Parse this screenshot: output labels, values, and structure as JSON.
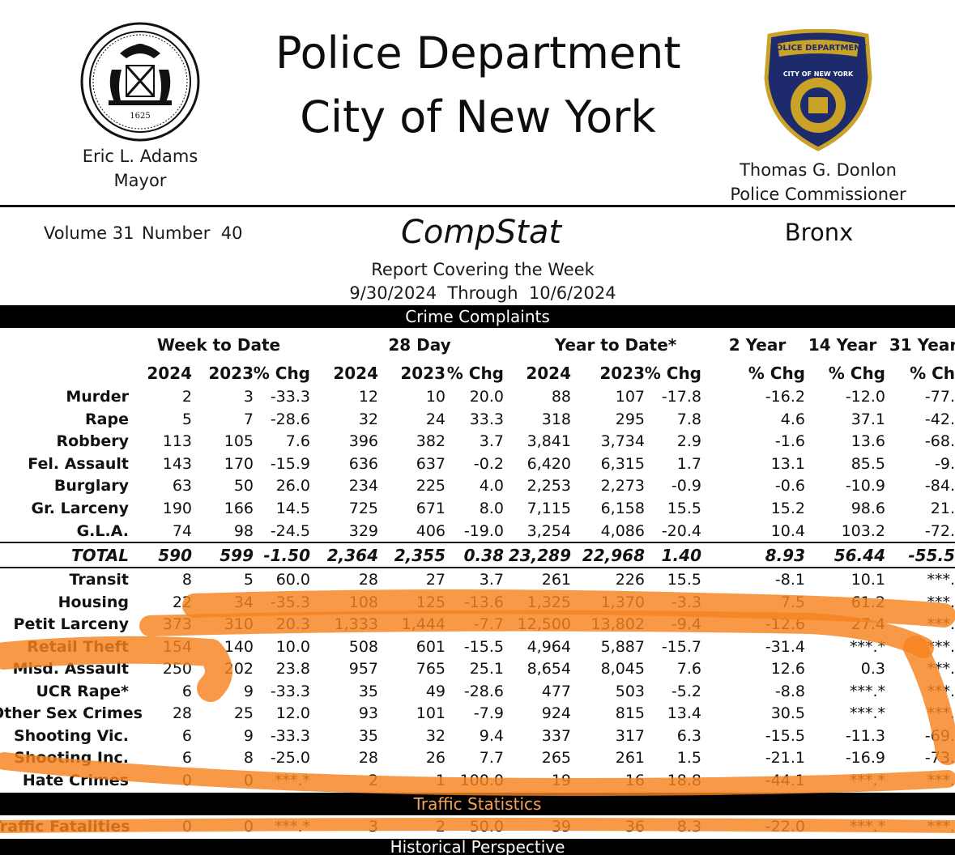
{
  "header": {
    "title_line1": "Police Department",
    "title_line2": "City of New York",
    "mayor_name": "Eric L. Adams",
    "mayor_title": "Mayor",
    "commissioner_name": "Thomas G. Donlon",
    "commissioner_title": "Police Commissioner",
    "seal_year": "1625",
    "badge_text": "POLICE DEPARTMENT",
    "badge_ring": "CITY OF NEW YORK"
  },
  "report": {
    "volume": "Volume 31",
    "number": "Number  40",
    "name": "CompStat",
    "borough": "Bronx",
    "covering": "Report Covering the Week",
    "dates": "9/30/2024  Through  10/6/2024"
  },
  "sections": {
    "crime": "Crime Complaints",
    "traffic": "Traffic Statistics",
    "next": "Historical Perspective"
  },
  "table": {
    "groups": [
      "Week to Date",
      "28 Day",
      "Year to Date*",
      "2 Year",
      "14 Year",
      "31 Year"
    ],
    "columns": [
      "2024",
      "2023",
      "% Chg",
      "2024",
      "2023",
      "% Chg",
      "2024",
      "2023",
      "% Chg",
      "% Chg",
      "% Chg",
      "% Ch"
    ],
    "major_rows": [
      {
        "label": "Murder",
        "values": [
          "2",
          "3",
          "-33.3",
          "12",
          "10",
          "20.0",
          "88",
          "107",
          "-17.8",
          "-16.2",
          "-12.0",
          "-77."
        ]
      },
      {
        "label": "Rape",
        "values": [
          "5",
          "7",
          "-28.6",
          "32",
          "24",
          "33.3",
          "318",
          "295",
          "7.8",
          "4.6",
          "37.1",
          "-42."
        ]
      },
      {
        "label": "Robbery",
        "values": [
          "113",
          "105",
          "7.6",
          "396",
          "382",
          "3.7",
          "3,841",
          "3,734",
          "2.9",
          "-1.6",
          "13.6",
          "-68."
        ]
      },
      {
        "label": "Fel. Assault",
        "values": [
          "143",
          "170",
          "-15.9",
          "636",
          "637",
          "-0.2",
          "6,420",
          "6,315",
          "1.7",
          "13.1",
          "85.5",
          "-9."
        ]
      },
      {
        "label": "Burglary",
        "values": [
          "63",
          "50",
          "26.0",
          "234",
          "225",
          "4.0",
          "2,253",
          "2,273",
          "-0.9",
          "-0.6",
          "-10.9",
          "-84."
        ]
      },
      {
        "label": "Gr. Larceny",
        "values": [
          "190",
          "166",
          "14.5",
          "725",
          "671",
          "8.0",
          "7,115",
          "6,158",
          "15.5",
          "15.2",
          "98.6",
          "21."
        ]
      },
      {
        "label": "G.L.A.",
        "values": [
          "74",
          "98",
          "-24.5",
          "329",
          "406",
          "-19.0",
          "3,254",
          "4,086",
          "-20.4",
          "10.4",
          "103.2",
          "-72."
        ]
      }
    ],
    "total": {
      "label": "TOTAL",
      "values": [
        "590",
        "599",
        "-1.50",
        "2,364",
        "2,355",
        "0.38",
        "23,289",
        "22,968",
        "1.40",
        "8.93",
        "56.44",
        "-55.5"
      ]
    },
    "other_rows": [
      {
        "label": "Transit",
        "values": [
          "8",
          "5",
          "60.0",
          "28",
          "27",
          "3.7",
          "261",
          "226",
          "15.5",
          "-8.1",
          "10.1",
          "***."
        ]
      },
      {
        "label": "Housing",
        "values": [
          "22",
          "34",
          "-35.3",
          "108",
          "125",
          "-13.6",
          "1,325",
          "1,370",
          "-3.3",
          "7.5",
          "61.2",
          "***."
        ]
      },
      {
        "label": "Petit Larceny",
        "values": [
          "373",
          "310",
          "20.3",
          "1,333",
          "1,444",
          "-7.7",
          "12,500",
          "13,802",
          "-9.4",
          "-12.6",
          "27.4",
          "***."
        ]
      },
      {
        "label": "Retail Theft",
        "values": [
          "154",
          "140",
          "10.0",
          "508",
          "601",
          "-15.5",
          "4,964",
          "5,887",
          "-15.7",
          "-31.4",
          "***.*",
          "***."
        ]
      },
      {
        "label": "Misd. Assault",
        "values": [
          "250",
          "202",
          "23.8",
          "957",
          "765",
          "25.1",
          "8,654",
          "8,045",
          "7.6",
          "12.6",
          "0.3",
          "***."
        ]
      },
      {
        "label": "UCR Rape*",
        "values": [
          "6",
          "9",
          "-33.3",
          "35",
          "49",
          "-28.6",
          "477",
          "503",
          "-5.2",
          "-8.8",
          "***.*",
          "***."
        ]
      },
      {
        "label": "Other Sex Crimes",
        "values": [
          "28",
          "25",
          "12.0",
          "93",
          "101",
          "-7.9",
          "924",
          "815",
          "13.4",
          "30.5",
          "***.*",
          "***."
        ]
      },
      {
        "label": "Shooting Vic.",
        "values": [
          "6",
          "9",
          "-33.3",
          "35",
          "32",
          "9.4",
          "337",
          "317",
          "6.3",
          "-15.5",
          "-11.3",
          "-69."
        ]
      },
      {
        "label": "Shooting Inc.",
        "values": [
          "6",
          "8",
          "-25.0",
          "28",
          "26",
          "7.7",
          "265",
          "261",
          "1.5",
          "-21.1",
          "-16.9",
          "-73."
        ]
      },
      {
        "label": "Hate Crimes",
        "values": [
          "0",
          "0",
          "***.*",
          "2",
          "1",
          "100.0",
          "19",
          "16",
          "18.8",
          "-44.1",
          "***.*",
          "***."
        ]
      }
    ],
    "traffic_row": {
      "label": "Traffic Fatalities",
      "values": [
        "0",
        "0",
        "***.*",
        "3",
        "2",
        "50.0",
        "39",
        "36",
        "8.3",
        "-22.0",
        "***.*",
        "***."
      ]
    }
  },
  "colors": {
    "highlighter": "#f7831f",
    "badge_gold": "#c9a227",
    "badge_blue": "#1d2a6b",
    "bar": "#000000"
  }
}
